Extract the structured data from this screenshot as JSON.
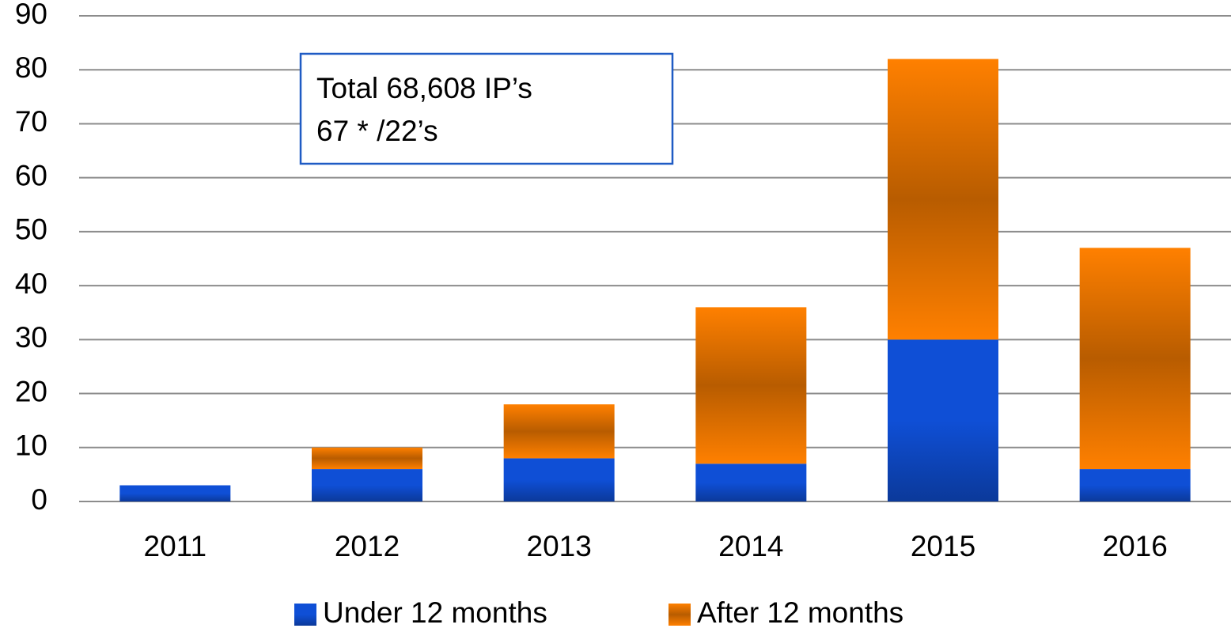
{
  "chart_data": {
    "type": "stacked_bar",
    "categories": [
      "2011",
      "2012",
      "2013",
      "2014",
      "2015",
      "2016"
    ],
    "series": [
      {
        "name": "Under 12 months",
        "color": "#0f4fd6",
        "values": [
          3,
          6,
          8,
          7,
          30,
          6
        ]
      },
      {
        "name": "After 12 months",
        "color": "#ff8000",
        "values": [
          0,
          4,
          10,
          29,
          52,
          41
        ]
      }
    ],
    "ylim": [
      0,
      90
    ],
    "yticks": [
      0,
      10,
      20,
      30,
      40,
      50,
      60,
      70,
      80,
      90
    ],
    "grid": true,
    "legend": "bottom",
    "annotations": [
      "Total 68,608 IP’s",
      "67 * /22’s"
    ]
  }
}
